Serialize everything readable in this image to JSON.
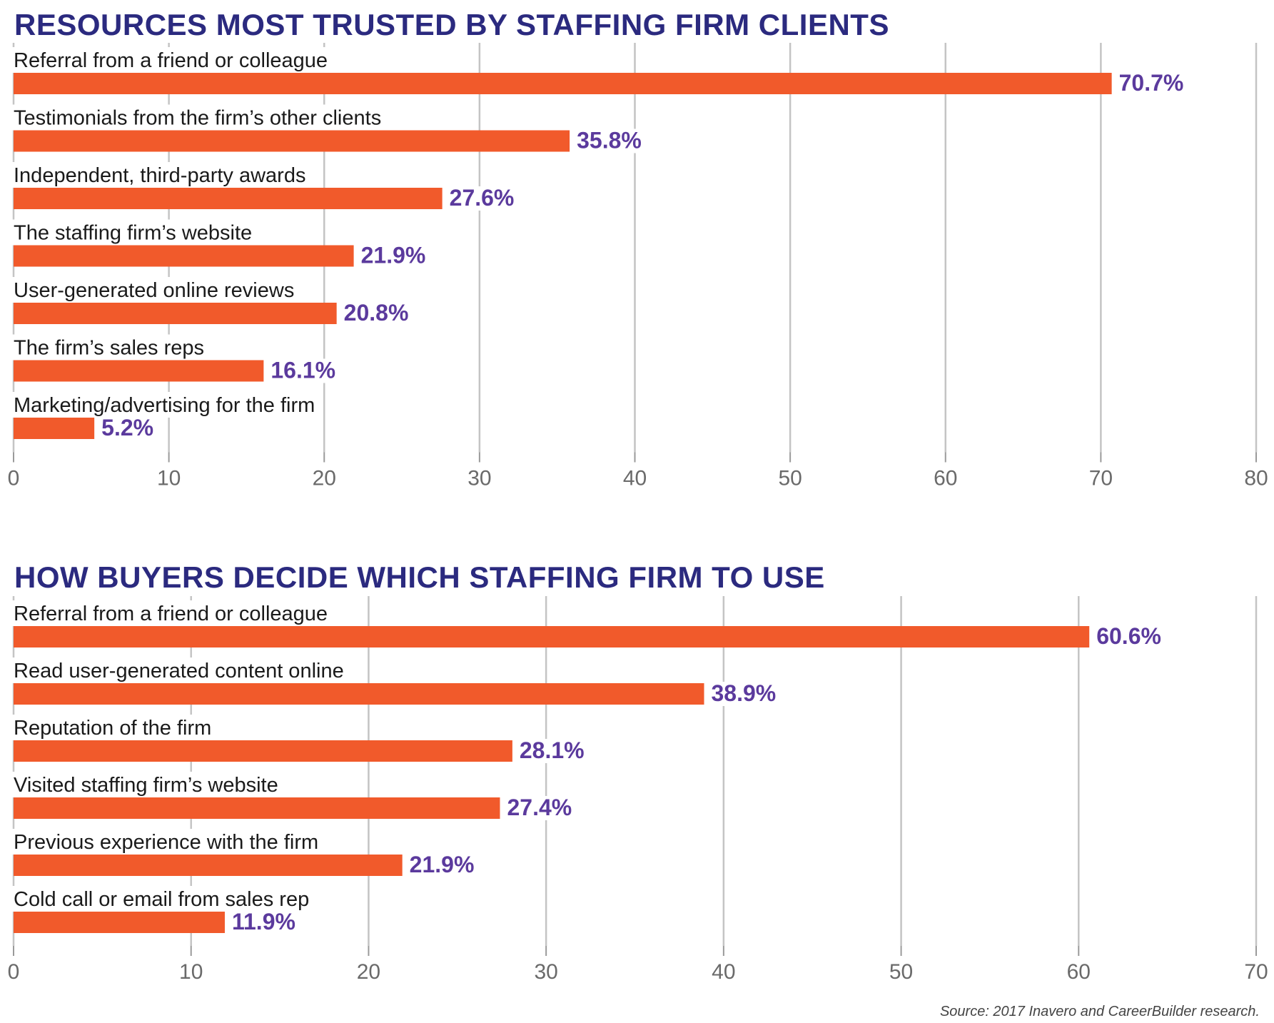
{
  "chart_data": [
    {
      "type": "bar",
      "orientation": "horizontal",
      "title": "RESOURCES MOST TRUSTED BY STAFFING FIRM CLIENTS",
      "categories": [
        "Referral from a friend or colleague",
        "Testimonials from the firm’s other clients",
        "Independent, third-party awards",
        "The staffing firm’s website",
        "User-generated online reviews",
        "The firm’s sales reps",
        "Marketing/advertising for the firm"
      ],
      "values": [
        70.7,
        35.8,
        27.6,
        21.9,
        20.8,
        16.1,
        5.2
      ],
      "value_labels": [
        "70.7%",
        "35.8%",
        "27.6%",
        "21.9%",
        "20.8%",
        "16.1%",
        "5.2%"
      ],
      "xlim": [
        0,
        80
      ],
      "xticks": [
        "0",
        "10",
        "20",
        "30",
        "40",
        "50",
        "60",
        "70",
        "80"
      ],
      "grid": true,
      "bar_color": "#f15a2b",
      "label_color": "#5b3a9d"
    },
    {
      "type": "bar",
      "orientation": "horizontal",
      "title": "HOW BUYERS DECIDE WHICH STAFFING FIRM TO USE",
      "categories": [
        "Referral from a friend or colleague",
        "Read user-generated content online",
        "Reputation of the firm",
        "Visited staffing firm’s website",
        "Previous experience with the firm",
        "Cold call or email from sales rep"
      ],
      "values": [
        60.6,
        38.9,
        28.1,
        27.4,
        21.9,
        11.9
      ],
      "value_labels": [
        "60.6%",
        "38.9%",
        "28.1%",
        "27.4%",
        "21.9%",
        "11.9%"
      ],
      "xlim": [
        0,
        70
      ],
      "xticks": [
        "0",
        "10",
        "20",
        "30",
        "40",
        "50",
        "60",
        "70"
      ],
      "grid": true,
      "bar_color": "#f15a2b",
      "label_color": "#5b3a9d"
    }
  ],
  "source": "Source: 2017 Inavero and CareerBuilder research."
}
